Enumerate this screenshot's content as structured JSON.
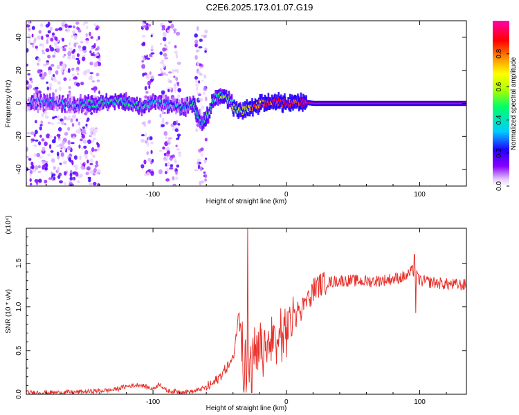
{
  "title": "C2E6.2025.173.01.07.G19",
  "chart_data": [
    {
      "type": "heatmap",
      "title": "C2E6.2025.173.01.07.G19",
      "xlabel": "Height of straight line (km)",
      "ylabel": "Frequency (Hz)",
      "xlim": [
        -195,
        135
      ],
      "ylim": [
        -50,
        50
      ],
      "xticks": [
        -100,
        0,
        100
      ],
      "xtick_labels": [
        "-100",
        "0",
        "100"
      ],
      "yticks": [
        40,
        20,
        0,
        -20,
        -40
      ],
      "ytick_labels": [
        "40",
        "20",
        "0",
        "-20",
        "-40"
      ],
      "colorbar": {
        "label": "Normalized spectral amplitude",
        "range": [
          0,
          1
        ],
        "ticks": [
          0.0,
          0.2,
          0.4,
          0.6,
          0.8
        ],
        "tick_labels": [
          "0.0",
          "0.2",
          "0.4",
          "0.6",
          "0.8"
        ],
        "colors": [
          "#ffffff",
          "#e6ccff",
          "#8800ff",
          "#2200ff",
          "#00ccff",
          "#00ff66",
          "#aaff00",
          "#ffff00",
          "#ff8800",
          "#ff0000",
          "#ff00aa"
        ]
      },
      "ridge": {
        "x": [
          -195,
          -180,
          -160,
          -140,
          -130,
          -120,
          -110,
          -100,
          -90,
          -80,
          -70,
          -65,
          -60,
          -55,
          -50,
          -45,
          -40,
          -35,
          -30,
          -20,
          -10,
          0,
          10,
          20,
          40,
          60,
          80,
          100,
          120,
          135
        ],
        "freq": [
          0,
          1,
          -1,
          0,
          2,
          1,
          -2,
          1,
          -1,
          -3,
          0,
          -12,
          -8,
          3,
          5,
          3,
          -2,
          -5,
          -3,
          0,
          1,
          0,
          1,
          0,
          0,
          0,
          0,
          0,
          0,
          0
        ],
        "amplitude": [
          0.2,
          0.25,
          0.3,
          0.35,
          0.4,
          0.4,
          0.35,
          0.3,
          0.3,
          0.35,
          0.4,
          0.35,
          0.4,
          0.45,
          0.5,
          0.45,
          0.55,
          0.6,
          0.7,
          0.85,
          0.9,
          0.9,
          0.92,
          0.95,
          0.95,
          0.95,
          0.95,
          0.95,
          0.95,
          0.95
        ]
      },
      "noise_bands": [
        [
          -195,
          -140
        ],
        [
          -108,
          -100
        ],
        [
          -95,
          -80
        ],
        [
          -68,
          -60
        ]
      ]
    },
    {
      "type": "line",
      "xlabel": "Height of straight line (km)",
      "ylabel": "SNR (10 * v/v)",
      "multiplier": "(x10⁴)",
      "xlim": [
        -195,
        135
      ],
      "ylim": [
        0,
        1.9
      ],
      "xticks": [
        -100,
        0,
        100
      ],
      "xtick_labels": [
        "-100",
        "0",
        "100"
      ],
      "yticks": [
        0.0,
        0.5,
        1.0,
        1.5
      ],
      "ytick_labels": [
        "0.0",
        "0.5",
        "1.0",
        "1.5"
      ],
      "series": [
        {
          "color": "#e8302a",
          "x": [
            -195,
            -170,
            -150,
            -130,
            -120,
            -110,
            -100,
            -95,
            -90,
            -80,
            -70,
            -60,
            -55,
            -50,
            -45,
            -40,
            -35,
            -30,
            -25,
            -20,
            -15,
            -10,
            -5,
            0,
            5,
            10,
            15,
            20,
            25,
            30,
            40,
            50,
            60,
            70,
            80,
            90,
            95,
            100,
            110,
            120,
            135
          ],
          "y": [
            0.02,
            0.02,
            0.03,
            0.05,
            0.09,
            0.11,
            0.06,
            0.12,
            0.04,
            0.03,
            0.03,
            0.08,
            0.12,
            0.2,
            0.3,
            0.4,
            1.0,
            0.5,
            0.55,
            0.62,
            0.68,
            0.75,
            0.82,
            0.9,
            1.0,
            1.05,
            1.15,
            1.2,
            1.25,
            1.28,
            1.3,
            1.3,
            1.29,
            1.3,
            1.32,
            1.35,
            1.42,
            1.3,
            1.28,
            1.26,
            1.25
          ]
        }
      ],
      "spikes": [
        {
          "x": -29,
          "y": 1.9
        },
        {
          "x": 96,
          "y": 1.6
        },
        {
          "x": 97,
          "y": 0.93
        }
      ]
    }
  ]
}
